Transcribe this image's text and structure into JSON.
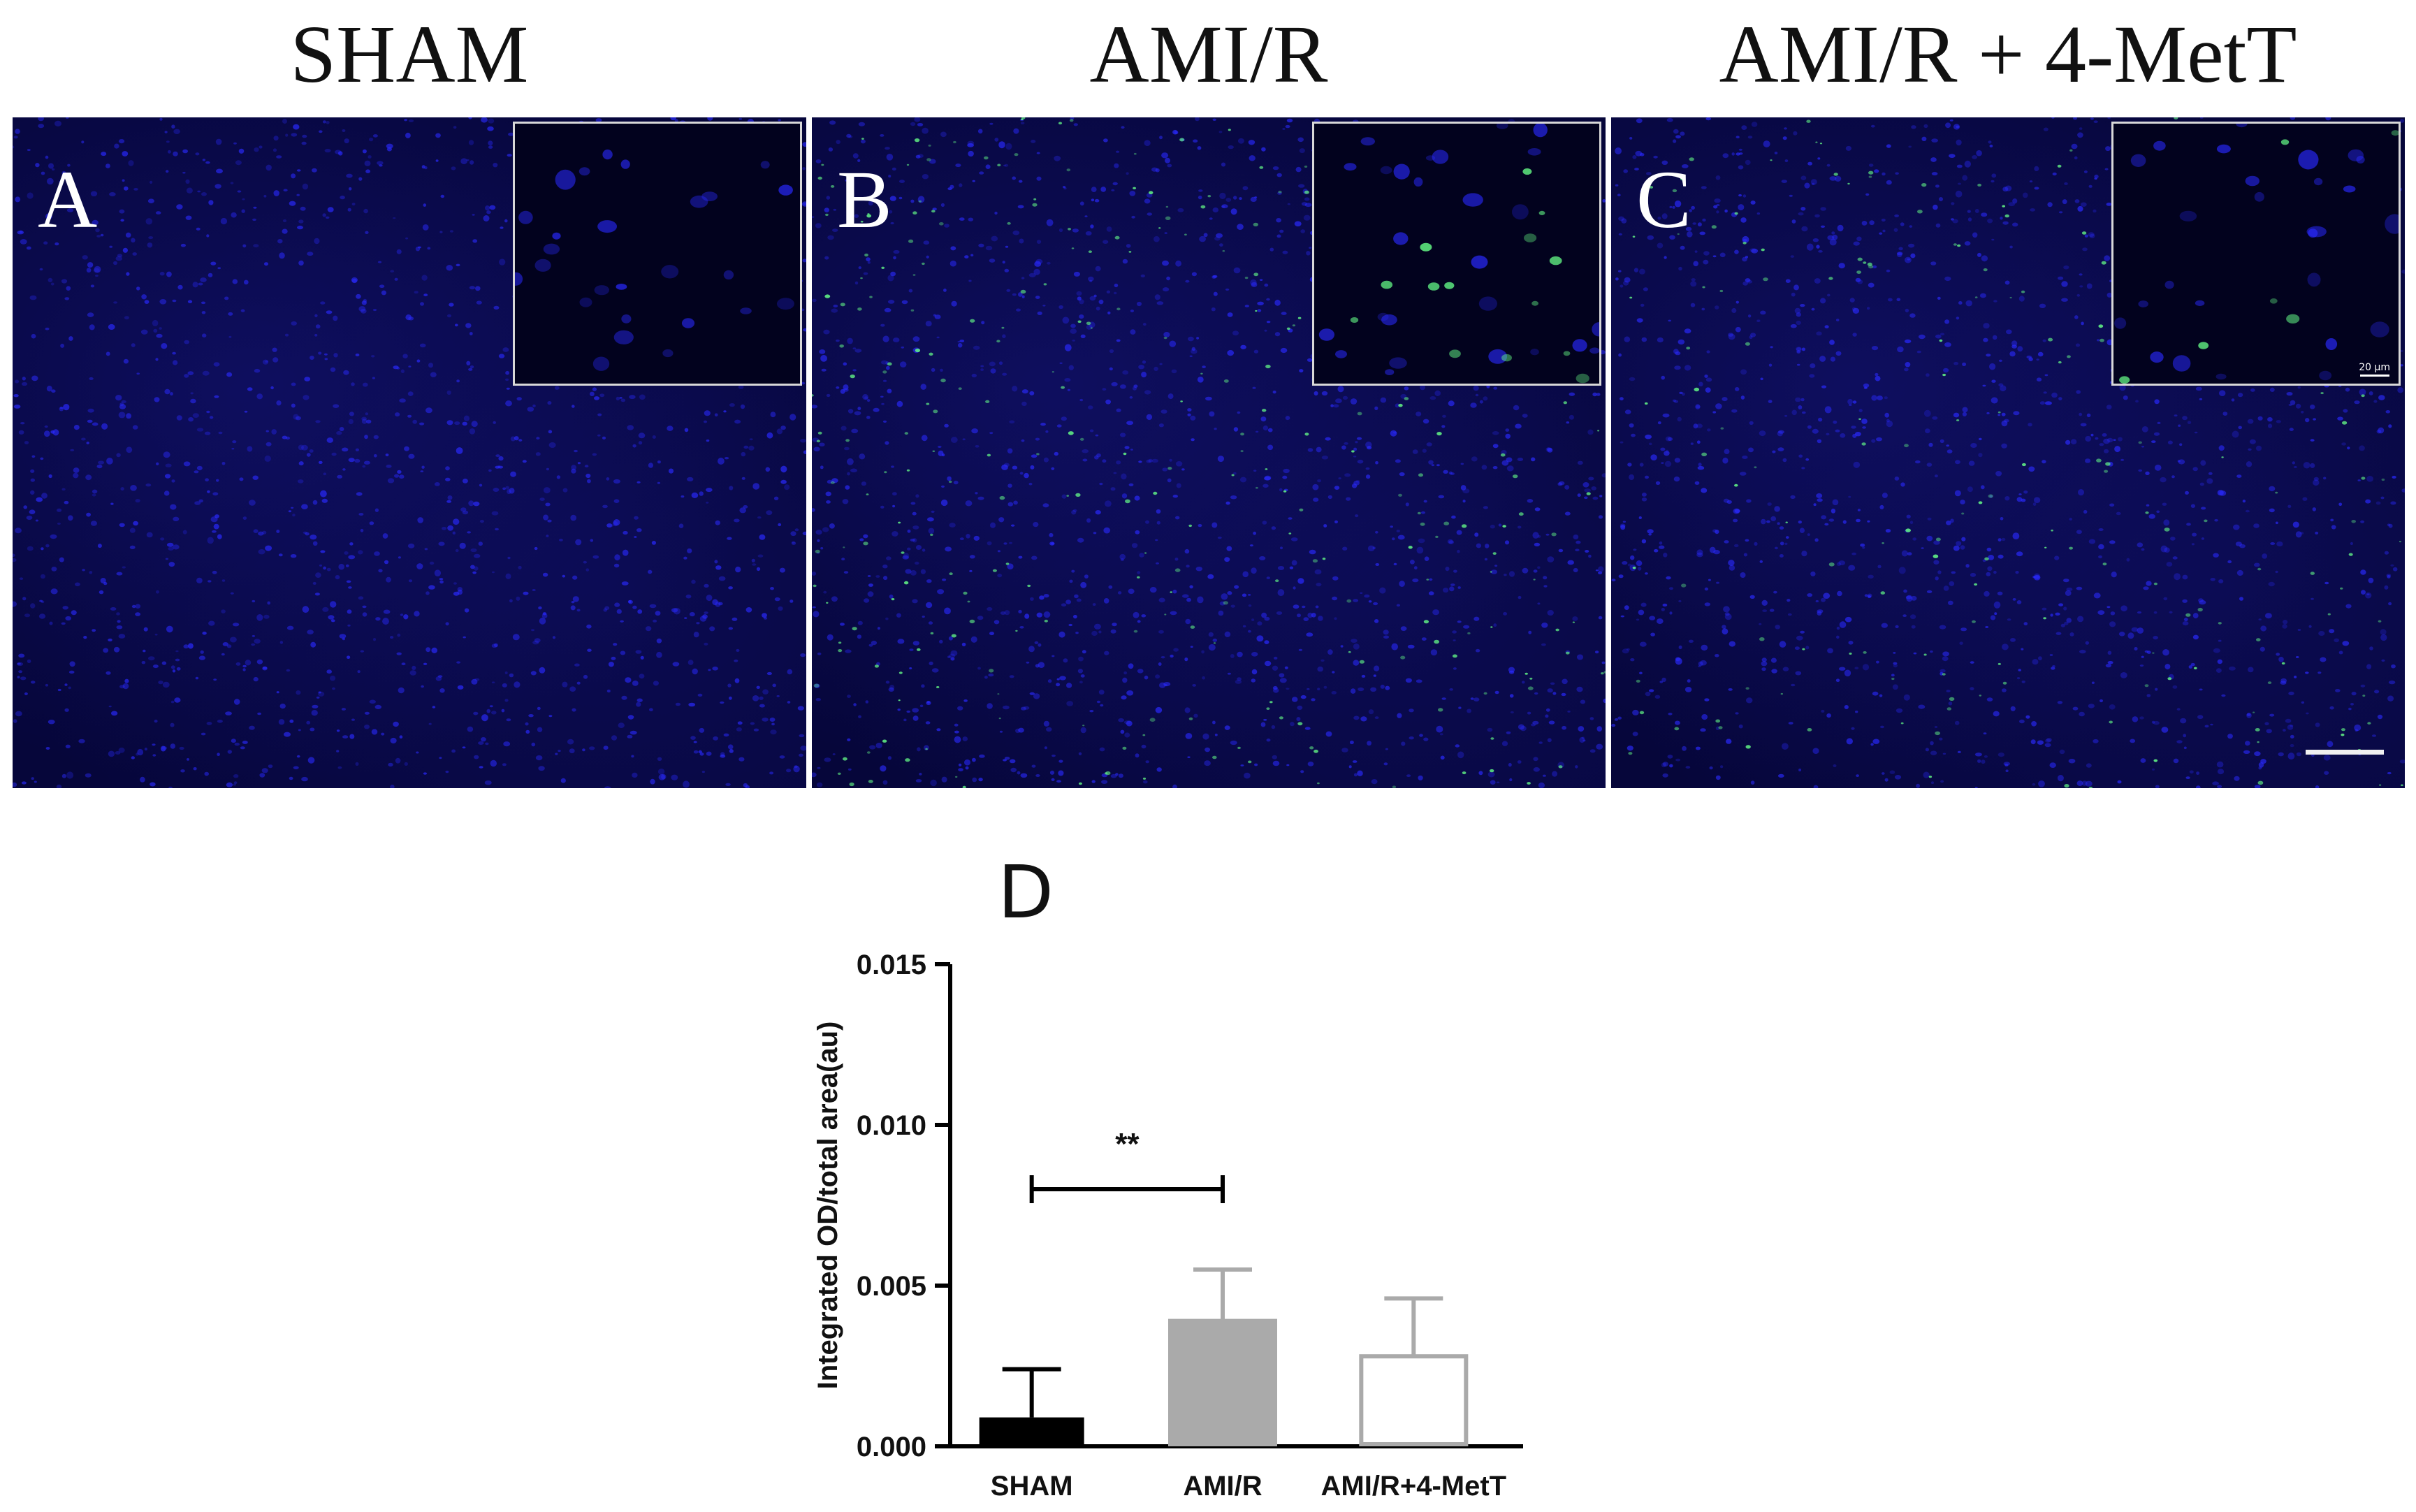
{
  "columns": [
    {
      "title": "SHAM",
      "letter": "A"
    },
    {
      "title": "AMI/R",
      "letter": "B"
    },
    {
      "title": "AMI/R + 4-MetT",
      "letter": "C"
    }
  ],
  "inset_scale_label": "20 μm",
  "colors": {
    "nuclei": "#2a2aff",
    "signal": "#66ff88",
    "panel_bg": "#06063a"
  },
  "chart_letter": "D",
  "chart_data": {
    "type": "bar",
    "categories": [
      "SHAM",
      "AMI/R",
      "AMI/R+4-MetT"
    ],
    "values": [
      0.0009,
      0.0039,
      0.0028
    ],
    "errors": [
      0.0015,
      0.0016,
      0.0018
    ],
    "bar_fill": [
      "#000000",
      "#aaaaaa",
      "#ffffff"
    ],
    "bar_stroke": [
      "#000000",
      "#aaaaaa",
      "#aaaaaa"
    ],
    "ylabel": "Integrated OD/total area(au)",
    "ylim": [
      0,
      0.015
    ],
    "yticks": [
      "0.000",
      "0.005",
      "0.010",
      "0.015"
    ],
    "yticks_values": [
      0,
      0.005,
      0.01,
      0.015
    ],
    "significance": {
      "from": "SHAM",
      "to": "AMI/R",
      "label": "**"
    }
  }
}
